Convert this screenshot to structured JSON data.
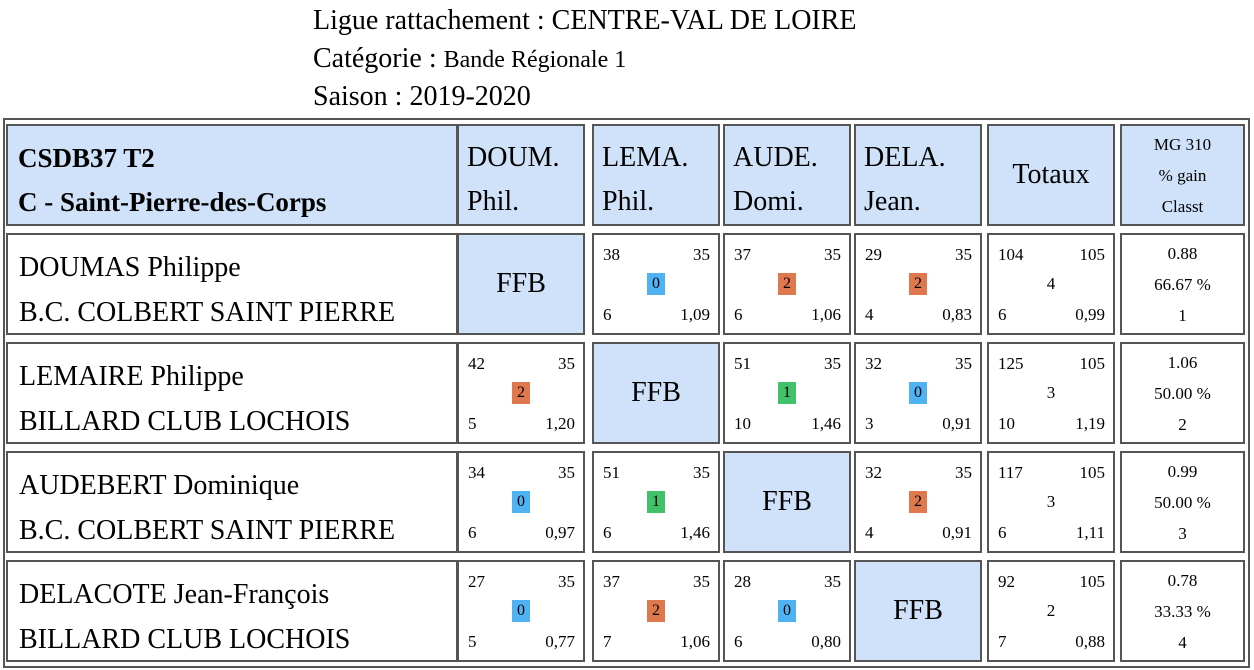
{
  "header": {
    "ligue_label": "Ligue rattachement :",
    "ligue_value": "CENTRE-VAL DE LOIRE",
    "categorie_label": "Catégorie :",
    "categorie_value": "Bande Régionale 1",
    "saison_label": "Saison :",
    "saison_value": "2019-2020"
  },
  "table": {
    "team_line1": "CSDB37 T2",
    "team_line2": "C - Saint-Pierre-des-Corps",
    "columns": [
      {
        "line1": "DOUM.",
        "line2": "Phil."
      },
      {
        "line1": "LEMA.",
        "line2": "Phil."
      },
      {
        "line1": "AUDE.",
        "line2": "Domi."
      },
      {
        "line1": "DELA.",
        "line2": "Jean."
      }
    ],
    "totals_label": "Totaux",
    "mg_labels": [
      "MG 310",
      "% gain",
      "Classt"
    ],
    "self_label": "FFB",
    "rows": [
      {
        "name": "DOUMAS Philippe",
        "club": "B.C. COLBERT SAINT PIERRE",
        "matches": [
          null,
          {
            "pts": "38",
            "dist": "35",
            "result": "0",
            "rep": "6",
            "avg": "1,09"
          },
          {
            "pts": "37",
            "dist": "35",
            "result": "2",
            "rep": "6",
            "avg": "1,06"
          },
          {
            "pts": "29",
            "dist": "35",
            "result": "2",
            "rep": "4",
            "avg": "0,83"
          }
        ],
        "totals": {
          "pts": "104",
          "dist": "105",
          "result": "4",
          "rep": "6",
          "avg": "0,99"
        },
        "mg": {
          "mg": "0.88",
          "pct": "66.67 %",
          "rank": "1"
        }
      },
      {
        "name": "LEMAIRE Philippe",
        "club": "BILLARD CLUB LOCHOIS",
        "matches": [
          {
            "pts": "42",
            "dist": "35",
            "result": "2",
            "rep": "5",
            "avg": "1,20"
          },
          null,
          {
            "pts": "51",
            "dist": "35",
            "result": "1",
            "rep": "10",
            "avg": "1,46"
          },
          {
            "pts": "32",
            "dist": "35",
            "result": "0",
            "rep": "3",
            "avg": "0,91"
          }
        ],
        "totals": {
          "pts": "125",
          "dist": "105",
          "result": "3",
          "rep": "10",
          "avg": "1,19"
        },
        "mg": {
          "mg": "1.06",
          "pct": "50.00 %",
          "rank": "2"
        }
      },
      {
        "name": "AUDEBERT Dominique",
        "club": "B.C. COLBERT SAINT PIERRE",
        "matches": [
          {
            "pts": "34",
            "dist": "35",
            "result": "0",
            "rep": "6",
            "avg": "0,97"
          },
          {
            "pts": "51",
            "dist": "35",
            "result": "1",
            "rep": "6",
            "avg": "1,46"
          },
          null,
          {
            "pts": "32",
            "dist": "35",
            "result": "2",
            "rep": "4",
            "avg": "0,91"
          }
        ],
        "totals": {
          "pts": "117",
          "dist": "105",
          "result": "3",
          "rep": "6",
          "avg": "1,11"
        },
        "mg": {
          "mg": "0.99",
          "pct": "50.00 %",
          "rank": "3"
        }
      },
      {
        "name": "DELACOTE Jean-François",
        "club": "BILLARD CLUB LOCHOIS",
        "matches": [
          {
            "pts": "27",
            "dist": "35",
            "result": "0",
            "rep": "5",
            "avg": "0,77"
          },
          {
            "pts": "37",
            "dist": "35",
            "result": "2",
            "rep": "7",
            "avg": "1,06"
          },
          {
            "pts": "28",
            "dist": "35",
            "result": "0",
            "rep": "6",
            "avg": "0,80"
          },
          null
        ],
        "totals": {
          "pts": "92",
          "dist": "105",
          "result": "2",
          "rep": "7",
          "avg": "0,88"
        },
        "mg": {
          "mg": "0.78",
          "pct": "33.33 %",
          "rank": "4"
        }
      }
    ]
  },
  "colors": {
    "header_blue": "#cfe2f9",
    "result_0": "#4fb3f3",
    "result_1": "#42c16b",
    "result_2": "#e0784e",
    "border": "#555555"
  }
}
